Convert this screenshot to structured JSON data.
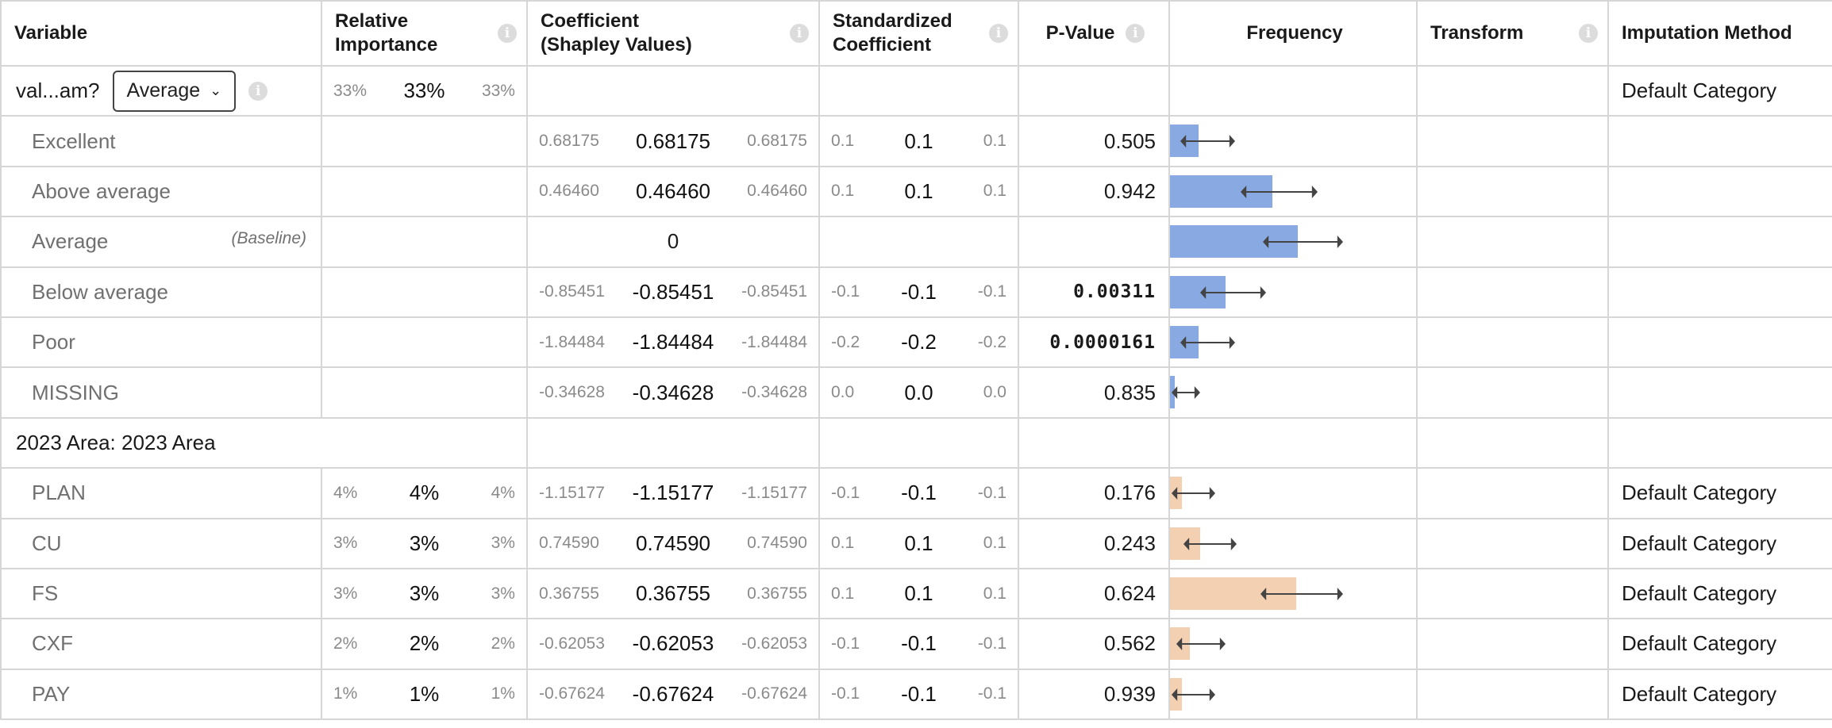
{
  "headers": {
    "variable": "Variable",
    "importance": "Relative Importance",
    "coefficient": "Coefficient (Shapley Values)",
    "standardized": "Standardized Coefficient",
    "pvalue": "P-Value",
    "frequency": "Frequency",
    "transform": "Transform",
    "imputation": "Imputation Method"
  },
  "group1": {
    "name": "val...am?",
    "dropdown": "Average",
    "importance": [
      "33%",
      "33%",
      "33%"
    ],
    "imputation": "Default Category",
    "baseline_label": "(Baseline)",
    "rows": [
      {
        "label": "Excellent",
        "coef": [
          "0.68175",
          "0.68175",
          "0.68175"
        ],
        "std": [
          "0.1",
          "0.1",
          "0.1"
        ],
        "p": "0.505",
        "p_bold": false,
        "freq": 0.17,
        "ci": [
          0.05,
          0.36
        ]
      },
      {
        "label": "Above average",
        "coef": [
          "0.46460",
          "0.46460",
          "0.46460"
        ],
        "std": [
          "0.1",
          "0.1",
          "0.1"
        ],
        "p": "0.942",
        "p_bold": false,
        "freq": 0.61,
        "ci": [
          0.41,
          0.85
        ]
      },
      {
        "label": "Average",
        "coef_center": "0",
        "freq": 0.76,
        "ci": [
          0.54,
          1.0
        ]
      },
      {
        "label": "Below average",
        "coef": [
          "-0.85451",
          "-0.85451",
          "-0.85451"
        ],
        "std": [
          "-0.1",
          "-0.1",
          "-0.1"
        ],
        "p": "0.00311",
        "p_bold": true,
        "freq": 0.33,
        "ci": [
          0.17,
          0.54
        ]
      },
      {
        "label": "Poor",
        "coef": [
          "-1.84484",
          "-1.84484",
          "-1.84484"
        ],
        "std": [
          "-0.2",
          "-0.2",
          "-0.2"
        ],
        "p": "0.0000161",
        "p_bold": true,
        "freq": 0.17,
        "ci": [
          0.05,
          0.36
        ]
      },
      {
        "label": "MISSING",
        "coef": [
          "-0.34628",
          "-0.34628",
          "-0.34628"
        ],
        "std": [
          "0.0",
          "0.0",
          "0.0"
        ],
        "p": "0.835",
        "p_bold": false,
        "freq": 0.02,
        "ci": [
          0.0,
          0.15
        ]
      }
    ]
  },
  "group2": {
    "name": "2023 Area: 2023 Area",
    "rows": [
      {
        "label": "PLAN",
        "imp": [
          "4%",
          "4%",
          "4%"
        ],
        "coef": [
          "-1.15177",
          "-1.15177",
          "-1.15177"
        ],
        "std": [
          "-0.1",
          "-0.1",
          "-0.1"
        ],
        "p": "0.176",
        "freq": 0.07,
        "ci": [
          0.0,
          0.24
        ],
        "impute": "Default Category"
      },
      {
        "label": "CU",
        "imp": [
          "3%",
          "3%",
          "3%"
        ],
        "coef": [
          "0.74590",
          "0.74590",
          "0.74590"
        ],
        "std": [
          "0.1",
          "0.1",
          "0.1"
        ],
        "p": "0.243",
        "freq": 0.18,
        "ci": [
          0.07,
          0.37
        ],
        "impute": "Default Category"
      },
      {
        "label": "FS",
        "imp": [
          "3%",
          "3%",
          "3%"
        ],
        "coef": [
          "0.36755",
          "0.36755",
          "0.36755"
        ],
        "std": [
          "0.1",
          "0.1",
          "0.1"
        ],
        "p": "0.624",
        "freq": 0.75,
        "ci": [
          0.53,
          1.0
        ],
        "impute": "Default Category"
      },
      {
        "label": "CXF",
        "imp": [
          "2%",
          "2%",
          "2%"
        ],
        "coef": [
          "-0.62053",
          "-0.62053",
          "-0.62053"
        ],
        "std": [
          "-0.1",
          "-0.1",
          "-0.1"
        ],
        "p": "0.562",
        "freq": 0.12,
        "ci": [
          0.03,
          0.3
        ],
        "impute": "Default Category"
      },
      {
        "label": "PAY",
        "imp": [
          "1%",
          "1%",
          "1%"
        ],
        "coef": [
          "-0.67624",
          "-0.67624",
          "-0.67624"
        ],
        "std": [
          "-0.1",
          "-0.1",
          "-0.1"
        ],
        "p": "0.939",
        "freq": 0.07,
        "ci": [
          0.0,
          0.24
        ],
        "impute": "Default Category"
      }
    ]
  },
  "colors": {
    "blue_bar": "#88a9e2",
    "orange_bar": "#f4d0b2"
  },
  "icons": {
    "info": "info-icon",
    "chevron": "chevron-down-icon"
  }
}
